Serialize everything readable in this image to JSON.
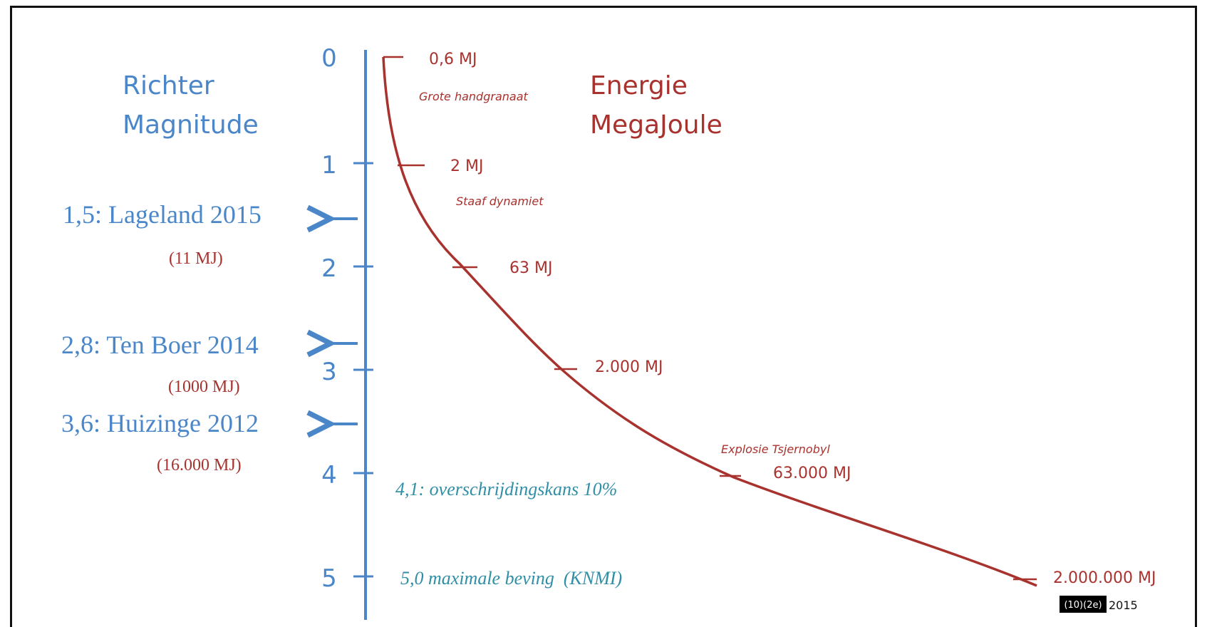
{
  "headers": {
    "left": [
      "Richter",
      "Magnitude"
    ],
    "right": [
      "Energie",
      "MegaJoule"
    ]
  },
  "colors": {
    "axis": "#4a86c8",
    "curve": "#a8322e",
    "event_text": "#4a86c8",
    "event_energy": "#a8322e",
    "note_text": "#2f8fa6"
  },
  "axis_ticks": [
    "0",
    "1",
    "2",
    "3",
    "4",
    "5"
  ],
  "energy_labels": [
    "0,6 MJ",
    "2 MJ",
    "63 MJ",
    "2.000 MJ",
    "63.000 MJ",
    "2.000.000 MJ"
  ],
  "comparisons": [
    "Grote handgranaat",
    "Staaf dynamiet",
    "Explosie Tsjernobyl"
  ],
  "events": [
    {
      "label": "1,5: Lageland 2015",
      "energy": "(11 MJ)"
    },
    {
      "label": "2,8: Ten Boer 2014",
      "energy": "(1000 MJ)"
    },
    {
      "label": "3,6: Huizinge 2012",
      "energy": "(16.000 MJ)"
    }
  ],
  "notes": [
    "4,1: overschrijdingskans 10%",
    "5,0 maximale beving  (KNMI)"
  ],
  "footer": {
    "badge": "(10)(2e)",
    "year": "2015"
  }
}
